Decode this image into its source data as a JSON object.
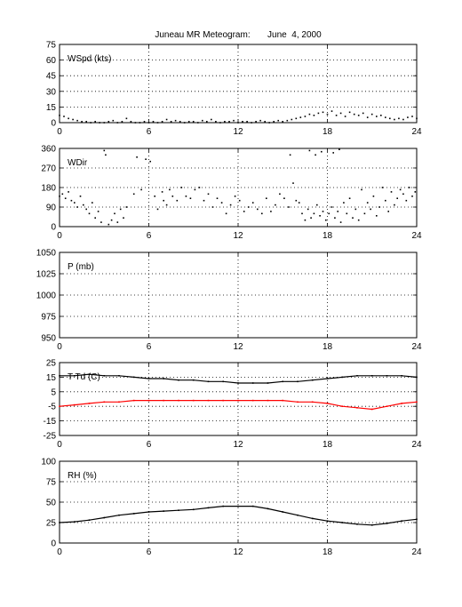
{
  "title": "Juneau MR Meteogram:       June  4, 2000",
  "chart_data": [
    {
      "type": "scatter",
      "label": "WSpd (kts)",
      "xlim": [
        0,
        24
      ],
      "xticks": [
        "0",
        "6",
        "12",
        "18",
        "24"
      ],
      "ylim": [
        0,
        75
      ],
      "yticks": [
        "0",
        "15",
        "30",
        "45",
        "60",
        "75"
      ],
      "grid": true,
      "series": [
        {
          "color": "#000000",
          "x": [
            0.0,
            0.3,
            0.6,
            0.9,
            1.2,
            1.5,
            1.8,
            2.1,
            2.4,
            2.7,
            3.0,
            3.3,
            3.6,
            3.9,
            4.2,
            4.5,
            4.8,
            5.1,
            5.4,
            5.7,
            6.0,
            6.3,
            6.6,
            6.9,
            7.2,
            7.5,
            7.8,
            8.1,
            8.4,
            8.7,
            9.0,
            9.3,
            9.6,
            9.9,
            10.2,
            10.5,
            10.8,
            11.1,
            11.4,
            11.7,
            12.0,
            12.3,
            12.6,
            12.9,
            13.2,
            13.5,
            13.8,
            14.1,
            14.4,
            14.7,
            15.0,
            15.3,
            15.6,
            15.9,
            16.2,
            16.5,
            16.8,
            17.1,
            17.4,
            17.7,
            18.0,
            18.3,
            18.6,
            18.9,
            19.2,
            19.5,
            19.8,
            20.1,
            20.4,
            20.7,
            21.0,
            21.3,
            21.6,
            21.9,
            22.2,
            22.5,
            22.8,
            23.1,
            23.4,
            23.7,
            24.0
          ],
          "y": [
            7,
            6,
            4,
            3,
            2,
            1,
            1,
            0,
            1,
            0,
            0,
            1,
            2,
            0,
            1,
            4,
            1,
            0,
            0,
            1,
            0,
            1,
            0,
            1,
            3,
            1,
            2,
            1,
            0,
            1,
            1,
            0,
            2,
            1,
            3,
            1,
            0,
            1,
            1,
            2,
            0,
            1,
            1,
            0,
            1,
            2,
            1,
            0,
            1,
            2,
            1,
            2,
            3,
            4,
            5,
            6,
            8,
            7,
            9,
            10,
            8,
            11,
            7,
            9,
            6,
            10,
            8,
            7,
            9,
            5,
            8,
            6,
            7,
            5,
            4,
            3,
            4,
            3,
            5,
            6,
            4
          ]
        }
      ]
    },
    {
      "type": "scatter",
      "label": "WDir",
      "xlim": [
        0,
        24
      ],
      "xticks": [
        "0",
        "6",
        "12",
        "18",
        "24"
      ],
      "ylim": [
        0,
        360
      ],
      "yticks": [
        "0",
        "90",
        "180",
        "270",
        "360"
      ],
      "grid": true,
      "series": [
        {
          "color": "#000000",
          "x": [
            0.0,
            0.2,
            0.4,
            0.6,
            0.8,
            1.0,
            1.2,
            1.4,
            1.6,
            1.8,
            2.0,
            2.2,
            2.4,
            2.6,
            2.8,
            3.0,
            3.1,
            3.3,
            3.5,
            3.7,
            3.9,
            4.1,
            4.3,
            4.5,
            5.0,
            5.2,
            5.5,
            5.8,
            6.1,
            6.4,
            6.6,
            6.9,
            7.0,
            7.2,
            7.4,
            7.6,
            7.9,
            8.2,
            8.5,
            8.8,
            9.1,
            9.4,
            9.7,
            10.0,
            10.3,
            10.6,
            10.9,
            11.2,
            11.5,
            11.8,
            12.1,
            12.4,
            12.7,
            13.0,
            13.3,
            13.6,
            13.9,
            14.2,
            14.5,
            14.8,
            15.1,
            15.4,
            15.5,
            15.7,
            15.9,
            16.1,
            16.3,
            16.5,
            16.7,
            16.9,
            17.1,
            17.3,
            17.5,
            17.7,
            17.9,
            18.1,
            18.3,
            18.5,
            18.7,
            18.9,
            19.1,
            19.3,
            19.5,
            19.7,
            19.9,
            20.1,
            20.3,
            20.5,
            20.7,
            20.9,
            21.1,
            21.3,
            21.5,
            21.7,
            21.9,
            22.1,
            22.3,
            22.5,
            22.7,
            22.9,
            23.1,
            23.3,
            23.5,
            23.7,
            23.9
          ],
          "y": [
            140,
            150,
            130,
            160,
            120,
            110,
            90,
            140,
            100,
            80,
            60,
            110,
            40,
            70,
            20,
            350,
            330,
            10,
            30,
            60,
            20,
            80,
            40,
            90,
            150,
            320,
            170,
            310,
            300,
            140,
            80,
            160,
            120,
            100,
            170,
            140,
            120,
            180,
            140,
            130,
            170,
            180,
            120,
            150,
            90,
            130,
            110,
            60,
            100,
            140,
            120,
            70,
            90,
            110,
            80,
            60,
            130,
            70,
            100,
            150,
            130,
            90,
            330,
            200,
            120,
            110,
            60,
            30,
            80,
            40,
            60,
            100,
            50,
            70,
            30,
            60,
            90,
            40,
            70,
            20,
            110,
            60,
            130,
            40,
            80,
            30,
            170,
            60,
            110,
            80,
            140,
            50,
            90,
            180,
            120,
            70,
            160,
            100,
            130,
            170,
            150,
            120,
            180,
            140,
            160
          ]
        },
        {
          "color": "#000000",
          "x": [
            16.8,
            17.2,
            17.6,
            18.4,
            18.8
          ],
          "y": [
            350,
            330,
            345,
            340,
            355
          ]
        }
      ]
    },
    {
      "type": "scatter",
      "label": "P (mb)",
      "xlim": [
        0,
        24
      ],
      "xticks": [
        "0",
        "6",
        "12",
        "18",
        "24"
      ],
      "ylim": [
        950,
        1050
      ],
      "yticks": [
        "950",
        "975",
        "1000",
        "1025",
        "1050"
      ],
      "grid": true,
      "series": []
    },
    {
      "type": "line",
      "label": "T Td (C)",
      "xlim": [
        0,
        24
      ],
      "xticks": [
        "0",
        "6",
        "12",
        "18",
        "24"
      ],
      "ylim": [
        -25,
        25
      ],
      "yticks": [
        "-25",
        "-15",
        "-5",
        "5",
        "15",
        "25"
      ],
      "grid": true,
      "series": [
        {
          "color": "#000000",
          "x": [
            0,
            1,
            2,
            3,
            4,
            5,
            6,
            7,
            8,
            9,
            10,
            11,
            12,
            13,
            14,
            15,
            16,
            17,
            18,
            19,
            20,
            21,
            22,
            23,
            24
          ],
          "y": [
            16,
            16,
            17,
            16,
            16,
            15,
            14,
            14,
            13,
            13,
            12,
            12,
            11,
            11,
            11,
            12,
            12,
            13,
            14,
            15,
            16,
            16,
            16,
            16,
            15
          ]
        },
        {
          "color": "#ff0000",
          "x": [
            0,
            1,
            2,
            3,
            4,
            5,
            6,
            7,
            8,
            9,
            10,
            11,
            12,
            13,
            14,
            15,
            16,
            17,
            18,
            19,
            20,
            21,
            22,
            23,
            24
          ],
          "y": [
            -5,
            -4,
            -3,
            -2,
            -2,
            -1,
            -1,
            -1,
            -1,
            -1,
            -1,
            -1,
            -1,
            -1,
            -1,
            -1,
            -2,
            -2,
            -3,
            -5,
            -6,
            -7,
            -5,
            -3,
            -2
          ]
        }
      ]
    },
    {
      "type": "line",
      "label": "RH (%)",
      "xlim": [
        0,
        24
      ],
      "xticks": [
        "0",
        "6",
        "12",
        "18",
        "24"
      ],
      "ylim": [
        0,
        100
      ],
      "yticks": [
        "0",
        "25",
        "50",
        "75",
        "100"
      ],
      "grid": true,
      "series": [
        {
          "color": "#000000",
          "x": [
            0,
            1,
            2,
            3,
            4,
            5,
            6,
            7,
            8,
            9,
            10,
            11,
            12,
            13,
            14,
            15,
            16,
            17,
            18,
            19,
            20,
            21,
            22,
            23,
            24
          ],
          "y": [
            25,
            26,
            28,
            31,
            34,
            36,
            38,
            39,
            40,
            41,
            43,
            45,
            45,
            45,
            42,
            38,
            34,
            30,
            27,
            25,
            23,
            22,
            24,
            27,
            29
          ]
        }
      ]
    }
  ]
}
